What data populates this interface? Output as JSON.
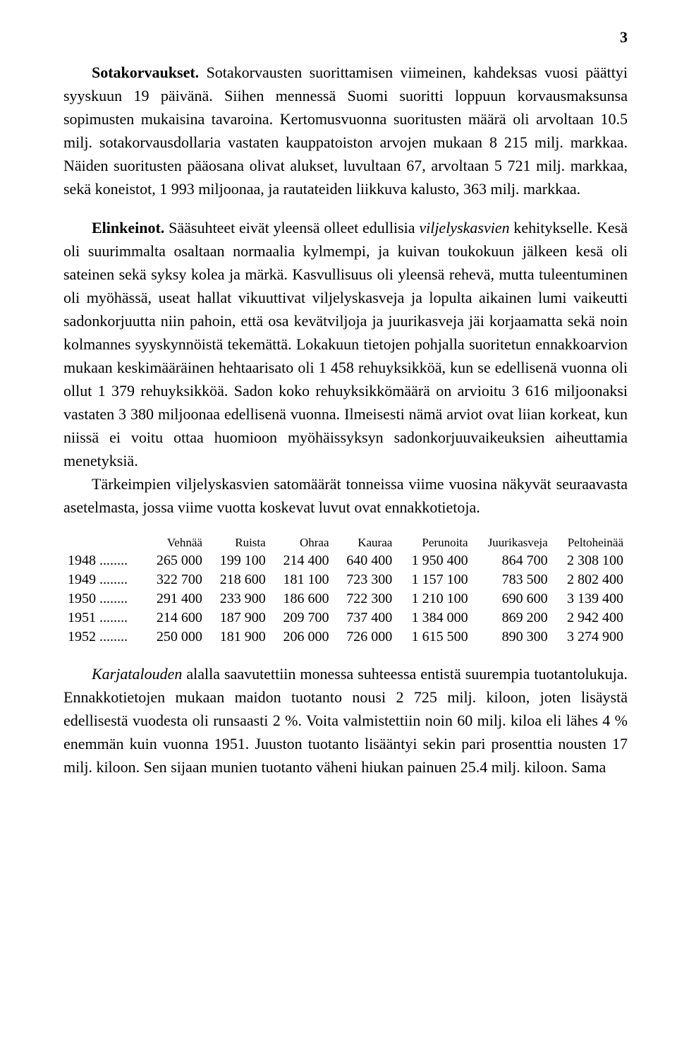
{
  "page_number": "3",
  "para1": {
    "title": "Sotakorvaukset.",
    "text": "Sotakorvausten suorittamisen viimeinen, kahdeksas vuosi päättyi syyskuun 19 päivänä. Siihen mennessä Suomi suoritti loppuun korvausmaksunsa sopimusten mukaisina tavaroina. Kertomusvuonna suoritusten määrä oli arvoltaan 10.5 milj. sotakorvausdollaria vastaten kauppatoiston arvojen mukaan 8 215 milj. markkaa. Näiden suoritusten pääosana olivat alukset, luvultaan 67, arvoltaan 5 721 milj. markkaa, sekä koneistot, 1 993 miljoonaa, ja rautateiden liikkuva kalusto, 363 milj. markkaa."
  },
  "para2": {
    "title": "Elinkeinot.",
    "text_before_italic": "Sääsuhteet eivät yleensä olleet edullisia ",
    "italic_word": "viljelyskasvien",
    "text_after_italic": " kehitykselle. Kesä oli suurimmalta osaltaan normaalia kylmempi, ja kuivan toukokuun jälkeen kesä oli sateinen sekä syksy kolea ja märkä. Kasvullisuus oli yleensä rehevä, mutta tuleentuminen oli myöhässä, useat hallat vikuuttivat viljelyskasveja ja lopulta aikainen lumi vaikeutti sadonkorjuutta niin pahoin, että osa kevätviljoja ja juurikasveja jäi korjaamatta sekä noin kolmannes syyskynnöistä tekemättä. Lokakuun tietojen pohjalla suoritetun ennakkoarvion mukaan keskimääräinen hehtaarisato oli 1 458 rehuyksikköä, kun se edellisenä vuonna oli ollut 1 379 rehuyksikköä. Sadon koko rehuyksikkömäärä on arvioitu 3 616 miljoonaksi vastaten 3 380 miljoonaa edellisenä vuonna. Ilmeisesti nämä arviot ovat liian korkeat, kun niissä ei voitu ottaa huomioon myöhäissyksyn sadonkorjuuvaikeuksien aiheuttamia menetyksiä."
  },
  "para3": "Tärkeimpien viljelyskasvien satomäärät tonneissa viime vuosina näkyvät seuraavasta asetelmasta, jossa viime vuotta koskevat luvut ovat ennakkotietoja.",
  "table": {
    "columns": [
      "",
      "Vehnää",
      "Ruista",
      "Ohraa",
      "Kauraa",
      "Perunoita",
      "Juurikasveja",
      "Peltoheinää"
    ],
    "rows": [
      [
        "1948 ........",
        "265 000",
        "199 100",
        "214 400",
        "640 400",
        "1 950 400",
        "864 700",
        "2 308 100"
      ],
      [
        "1949 ........",
        "322 700",
        "218 600",
        "181 100",
        "723 300",
        "1 157 100",
        "783 500",
        "2 802 400"
      ],
      [
        "1950 ........",
        "291 400",
        "233 900",
        "186 600",
        "722 300",
        "1 210 100",
        "690 600",
        "3 139 400"
      ],
      [
        "1951 ........",
        "214 600",
        "187 900",
        "209 700",
        "737 400",
        "1 384 000",
        "869 200",
        "2 942 400"
      ],
      [
        "1952 ........",
        "250 000",
        "181 900",
        "206 000",
        "726 000",
        "1 615 500",
        "890 300",
        "3 274 900"
      ]
    ]
  },
  "para4": {
    "italic_word": "Karjatalouden",
    "text_after": " alalla saavutettiin monessa suhteessa entistä suurempia tuotantolukuja. Ennakkotietojen mukaan maidon tuotanto nousi 2 725 milj. kiloon, joten lisäystä edellisestä vuodesta oli runsaasti 2 %. Voita valmistettiin noin 60 milj. kiloa eli lähes 4 % enemmän kuin vuonna 1951. Juuston tuotanto lisääntyi sekin pari prosenttia nousten 17 milj. kiloon. Sen sijaan munien tuotanto väheni hiukan painuen 25.4 milj. kiloon. Sama"
  }
}
